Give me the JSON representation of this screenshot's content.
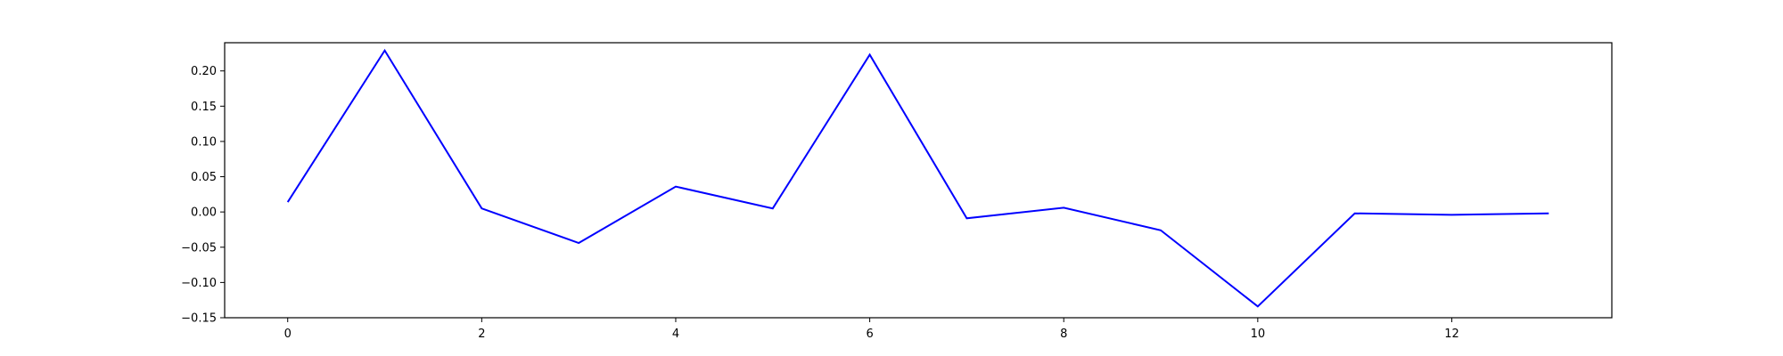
{
  "chart_data": {
    "type": "line",
    "title": "",
    "xlabel": "",
    "ylabel": "",
    "xlim": [
      -0.65,
      13.65
    ],
    "ylim": [
      -0.15,
      0.24
    ],
    "x_ticks": [
      0,
      2,
      4,
      6,
      8,
      10,
      12
    ],
    "y_ticks": [
      -0.15,
      -0.1,
      -0.05,
      0.0,
      0.05,
      0.1,
      0.15,
      0.2
    ],
    "x_tick_labels": [
      "0",
      "2",
      "4",
      "6",
      "8",
      "10",
      "12"
    ],
    "y_tick_labels": [
      "−0.15",
      "−0.10",
      "−0.05",
      "0.00",
      "0.05",
      "0.10",
      "0.15",
      "0.20"
    ],
    "grid": false,
    "series": [
      {
        "color": "#0000ff",
        "x": [
          0,
          1,
          2,
          3,
          4,
          5,
          6,
          7,
          8,
          9,
          10,
          11,
          12,
          13
        ],
        "values": [
          0.014,
          0.229,
          0.005,
          -0.044,
          0.036,
          0.005,
          0.223,
          -0.009,
          0.006,
          -0.026,
          -0.134,
          -0.002,
          -0.004,
          -0.002
        ]
      }
    ]
  }
}
